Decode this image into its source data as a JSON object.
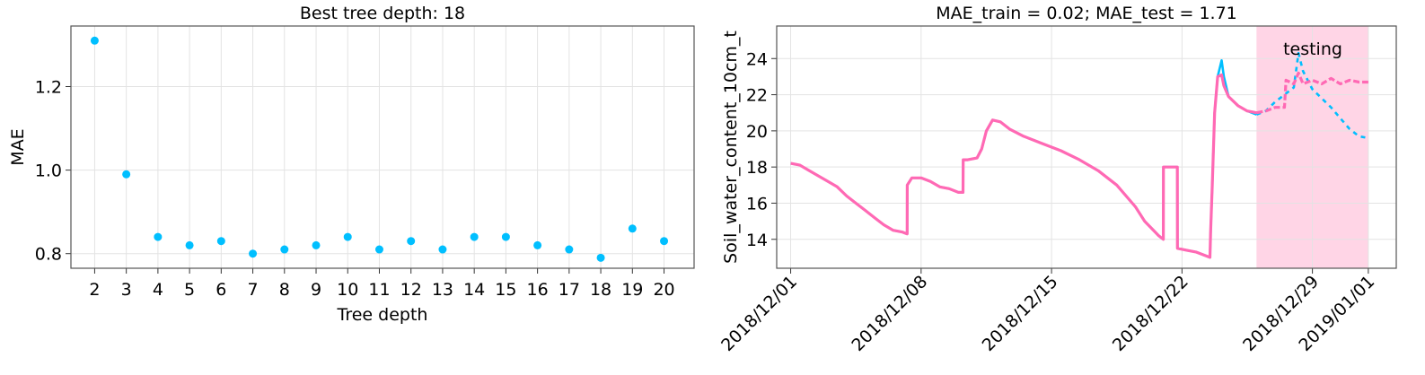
{
  "chart_data": [
    {
      "type": "scatter",
      "title": "Best tree depth: 18",
      "xlabel": "Tree depth",
      "ylabel": "MAE",
      "x": [
        2,
        3,
        4,
        5,
        6,
        7,
        8,
        9,
        10,
        11,
        12,
        13,
        14,
        15,
        16,
        17,
        18,
        19,
        20
      ],
      "x_tick_labels": [
        "2",
        "3",
        "4",
        "5",
        "6",
        "7",
        "8",
        "9",
        "10",
        "11",
        "12",
        "13",
        "14",
        "15",
        "16",
        "17",
        "18",
        "19",
        "20"
      ],
      "y": [
        1.31,
        0.99,
        0.84,
        0.82,
        0.83,
        0.8,
        0.81,
        0.82,
        0.84,
        0.81,
        0.83,
        0.81,
        0.84,
        0.84,
        0.82,
        0.81,
        0.79,
        0.86,
        0.83
      ],
      "y_ticks": [
        0.8,
        1.0,
        1.2
      ],
      "y_tick_labels": [
        "0.8",
        "1.0",
        "1.2"
      ],
      "xlim": [
        1.25,
        20.95
      ],
      "ylim": [
        0.765,
        1.345
      ],
      "grid": true,
      "colors": {
        "point": "#00bfff"
      }
    },
    {
      "type": "line",
      "title": "MAE_train = 0.02; MAE_test = 1.71",
      "xlabel": "",
      "ylabel": "Soil_water_content_10cm_t",
      "x_ticks": [
        "2018-12-01",
        "2018-12-08",
        "2018-12-15",
        "2018-12-22",
        "2018-12-29",
        "2019-01-01"
      ],
      "x_tick_labels": [
        "2018/12/01",
        "2018/12/08",
        "2018/12/15",
        "2018/12/22",
        "2018/12/29",
        "2019/01/01"
      ],
      "y_ticks": [
        14,
        16,
        18,
        20,
        22,
        24
      ],
      "y_tick_labels": [
        "14",
        "16",
        "18",
        "20",
        "22",
        "24"
      ],
      "xlim": [
        "2018-11-30T06:00",
        "2019-01-02T12:00"
      ],
      "ylim": [
        12.4,
        25.8
      ],
      "grid": true,
      "annotation": "testing",
      "testing_period": [
        "2018-12-26T00:00",
        "2019-01-01T00:00"
      ],
      "colors": {
        "observed": "#ff69b4",
        "predicted": "#00bfff",
        "testing_band": "#ffd5e6"
      },
      "series": [
        {
          "role": "predicted",
          "points": [
            [
              "2018-12-01T00:00",
              18.2
            ],
            [
              "2018-12-01T12:00",
              18.1
            ],
            [
              "2018-12-02T00:00",
              17.8
            ],
            [
              "2018-12-02T12:00",
              17.5
            ],
            [
              "2018-12-03T00:00",
              17.2
            ],
            [
              "2018-12-03T12:00",
              16.9
            ],
            [
              "2018-12-04T00:00",
              16.4
            ],
            [
              "2018-12-04T12:00",
              16.0
            ],
            [
              "2018-12-05T00:00",
              15.6
            ],
            [
              "2018-12-05T12:00",
              15.2
            ],
            [
              "2018-12-06T00:00",
              14.8
            ],
            [
              "2018-12-06T12:00",
              14.5
            ],
            [
              "2018-12-07T00:00",
              14.4
            ],
            [
              "2018-12-07T06:00",
              14.3
            ],
            [
              "2018-12-07T06:10",
              17.0
            ],
            [
              "2018-12-07T12:00",
              17.4
            ],
            [
              "2018-12-08T00:00",
              17.4
            ],
            [
              "2018-12-08T12:00",
              17.2
            ],
            [
              "2018-12-09T00:00",
              16.9
            ],
            [
              "2018-12-09T12:00",
              16.8
            ],
            [
              "2018-12-10T00:00",
              16.6
            ],
            [
              "2018-12-10T06:00",
              16.6
            ],
            [
              "2018-12-10T06:10",
              18.4
            ],
            [
              "2018-12-10T12:00",
              18.4
            ],
            [
              "2018-12-11T00:00",
              18.5
            ],
            [
              "2018-12-11T06:00",
              19.0
            ],
            [
              "2018-12-11T12:00",
              20.0
            ],
            [
              "2018-12-11T20:00",
              20.6
            ],
            [
              "2018-12-12T06:00",
              20.5
            ],
            [
              "2018-12-12T18:00",
              20.1
            ],
            [
              "2018-12-13T12:00",
              19.7
            ],
            [
              "2018-12-14T12:00",
              19.3
            ],
            [
              "2018-12-15T12:00",
              18.9
            ],
            [
              "2018-12-16T12:00",
              18.4
            ],
            [
              "2018-12-17T12:00",
              17.8
            ],
            [
              "2018-12-18T12:00",
              17.0
            ],
            [
              "2018-12-19T12:00",
              15.8
            ],
            [
              "2018-12-20T00:00",
              15.0
            ],
            [
              "2018-12-20T18:00",
              14.2
            ],
            [
              "2018-12-21T00:00",
              14.0
            ],
            [
              "2018-12-21T00:10",
              18.0
            ],
            [
              "2018-12-21T18:00",
              18.0
            ],
            [
              "2018-12-21T18:10",
              13.5
            ],
            [
              "2018-12-22T06:00",
              13.4
            ],
            [
              "2018-12-22T18:00",
              13.3
            ],
            [
              "2018-12-23T06:00",
              13.1
            ],
            [
              "2018-12-23T12:00",
              13.0
            ],
            [
              "2018-12-23T13:00",
              14.5
            ],
            [
              "2018-12-23T15:00",
              17.0
            ],
            [
              "2018-12-23T18:00",
              21.0
            ],
            [
              "2018-12-23T22:00",
              23.0
            ],
            [
              "2018-12-24T03:00",
              23.9
            ],
            [
              "2018-12-24T06:00",
              23.0
            ],
            [
              "2018-12-24T12:00",
              21.9
            ],
            [
              "2018-12-25T00:00",
              21.4
            ],
            [
              "2018-12-25T12:00",
              21.1
            ],
            [
              "2018-12-26T00:00",
              20.9
            ],
            [
              "2018-12-26T12:00",
              21.1
            ],
            [
              "2018-12-27T00:00",
              21.6
            ],
            [
              "2018-12-27T12:00",
              22.0
            ],
            [
              "2018-12-28T00:00",
              22.4
            ],
            [
              "2018-12-28T06:00",
              24.3
            ],
            [
              "2018-12-28T12:00",
              23.3
            ],
            [
              "2018-12-29T00:00",
              22.3
            ],
            [
              "2018-12-29T12:00",
              21.8
            ],
            [
              "2018-12-30T00:00",
              21.3
            ],
            [
              "2018-12-30T12:00",
              20.7
            ],
            [
              "2018-12-31T00:00",
              20.1
            ],
            [
              "2018-12-31T12:00",
              19.7
            ],
            [
              "2019-01-01T00:00",
              19.6
            ]
          ]
        },
        {
          "role": "observed",
          "points": [
            [
              "2018-12-01T00:00",
              18.2
            ],
            [
              "2018-12-01T12:00",
              18.1
            ],
            [
              "2018-12-02T00:00",
              17.8
            ],
            [
              "2018-12-02T12:00",
              17.5
            ],
            [
              "2018-12-03T00:00",
              17.2
            ],
            [
              "2018-12-03T12:00",
              16.9
            ],
            [
              "2018-12-04T00:00",
              16.4
            ],
            [
              "2018-12-04T12:00",
              16.0
            ],
            [
              "2018-12-05T00:00",
              15.6
            ],
            [
              "2018-12-05T12:00",
              15.2
            ],
            [
              "2018-12-06T00:00",
              14.8
            ],
            [
              "2018-12-06T12:00",
              14.5
            ],
            [
              "2018-12-07T00:00",
              14.4
            ],
            [
              "2018-12-07T06:00",
              14.3
            ],
            [
              "2018-12-07T06:10",
              17.0
            ],
            [
              "2018-12-07T12:00",
              17.4
            ],
            [
              "2018-12-08T00:00",
              17.4
            ],
            [
              "2018-12-08T12:00",
              17.2
            ],
            [
              "2018-12-09T00:00",
              16.9
            ],
            [
              "2018-12-09T12:00",
              16.8
            ],
            [
              "2018-12-10T00:00",
              16.6
            ],
            [
              "2018-12-10T06:00",
              16.6
            ],
            [
              "2018-12-10T06:10",
              18.4
            ],
            [
              "2018-12-10T12:00",
              18.4
            ],
            [
              "2018-12-11T00:00",
              18.5
            ],
            [
              "2018-12-11T06:00",
              19.0
            ],
            [
              "2018-12-11T12:00",
              20.0
            ],
            [
              "2018-12-11T20:00",
              20.6
            ],
            [
              "2018-12-12T06:00",
              20.5
            ],
            [
              "2018-12-12T18:00",
              20.1
            ],
            [
              "2018-12-13T12:00",
              19.7
            ],
            [
              "2018-12-14T12:00",
              19.3
            ],
            [
              "2018-12-15T12:00",
              18.9
            ],
            [
              "2018-12-16T12:00",
              18.4
            ],
            [
              "2018-12-17T12:00",
              17.8
            ],
            [
              "2018-12-18T12:00",
              17.0
            ],
            [
              "2018-12-19T12:00",
              15.8
            ],
            [
              "2018-12-20T00:00",
              15.0
            ],
            [
              "2018-12-20T18:00",
              14.2
            ],
            [
              "2018-12-21T00:00",
              14.0
            ],
            [
              "2018-12-21T00:10",
              18.0
            ],
            [
              "2018-12-21T18:00",
              18.0
            ],
            [
              "2018-12-21T18:10",
              13.5
            ],
            [
              "2018-12-22T06:00",
              13.4
            ],
            [
              "2018-12-22T18:00",
              13.3
            ],
            [
              "2018-12-23T06:00",
              13.1
            ],
            [
              "2018-12-23T12:00",
              13.0
            ],
            [
              "2018-12-23T13:00",
              14.5
            ],
            [
              "2018-12-23T15:00",
              17.0
            ],
            [
              "2018-12-23T18:00",
              21.0
            ],
            [
              "2018-12-23T22:00",
              23.0
            ],
            [
              "2018-12-24T03:00",
              23.1
            ],
            [
              "2018-12-24T06:00",
              22.5
            ],
            [
              "2018-12-24T12:00",
              21.9
            ],
            [
              "2018-12-25T00:00",
              21.4
            ],
            [
              "2018-12-25T12:00",
              21.1
            ],
            [
              "2018-12-26T00:00",
              21.0
            ],
            [
              "2018-12-26T12:00",
              21.1
            ],
            [
              "2018-12-27T00:00",
              21.3
            ],
            [
              "2018-12-27T12:00",
              21.3
            ],
            [
              "2018-12-27T14:00",
              22.8
            ],
            [
              "2018-12-28T00:00",
              22.6
            ],
            [
              "2018-12-28T06:00",
              23.2
            ],
            [
              "2018-12-28T12:00",
              22.6
            ],
            [
              "2018-12-29T00:00",
              22.8
            ],
            [
              "2018-12-29T12:00",
              22.6
            ],
            [
              "2018-12-30T00:00",
              22.9
            ],
            [
              "2018-12-30T12:00",
              22.6
            ],
            [
              "2018-12-31T00:00",
              22.8
            ],
            [
              "2018-12-31T12:00",
              22.7
            ],
            [
              "2019-01-01T00:00",
              22.7
            ]
          ]
        }
      ]
    }
  ]
}
